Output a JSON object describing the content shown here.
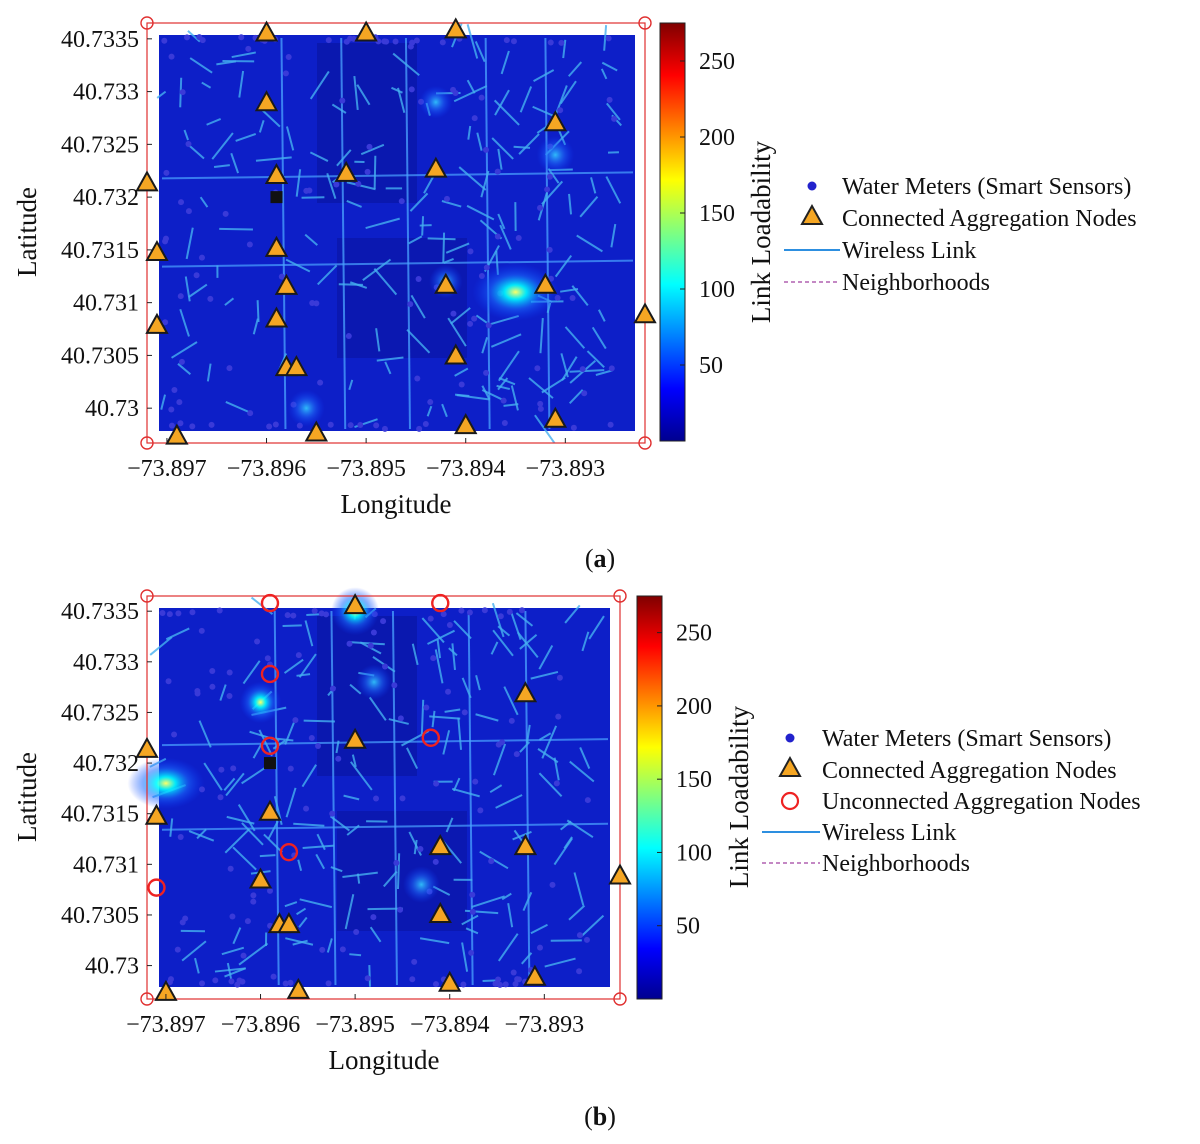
{
  "chart_data": [
    {
      "type": "heatmap",
      "caption": "(a)",
      "caption_letter": "a",
      "xlabel": "Longitude",
      "ylabel": "Latitude",
      "xticks": [
        "−73.897",
        "−73.896",
        "−73.895",
        "−73.894",
        "−73.893"
      ],
      "xtick_values": [
        -73.897,
        -73.896,
        -73.895,
        -73.894,
        -73.893
      ],
      "yticks": [
        "40.7335",
        "40.733",
        "40.7325",
        "40.732",
        "40.7315",
        "40.731",
        "40.7305",
        "40.73"
      ],
      "ytick_values": [
        40.7335,
        40.733,
        40.7325,
        40.732,
        40.7315,
        40.731,
        40.7305,
        40.73
      ],
      "xlim": [
        -73.8972,
        -73.8922
      ],
      "ylim": [
        40.72967,
        40.73365
      ],
      "colorbar": {
        "label": "Link Loadability",
        "ticks": [
          "50",
          "100",
          "150",
          "200",
          "250"
        ],
        "tick_values": [
          50,
          100,
          150,
          200,
          250
        ],
        "range": [
          0,
          275
        ]
      },
      "legend": [
        "Water Meters (Smart Sensors)",
        "Connected Aggregation Nodes",
        "Wireless Link",
        "Neighborhoods"
      ],
      "connected_nodes": [
        [
          -73.896,
          40.73355
        ],
        [
          -73.895,
          40.73355
        ],
        [
          -73.8941,
          40.73358
        ],
        [
          -73.896,
          40.73289
        ],
        [
          -73.8931,
          40.7327
        ],
        [
          -73.8972,
          40.73213
        ],
        [
          -73.8959,
          40.7322
        ],
        [
          -73.8952,
          40.73222
        ],
        [
          -73.8943,
          40.73226
        ],
        [
          -73.8971,
          40.73147
        ],
        [
          -73.8959,
          40.73151
        ],
        [
          -73.8958,
          40.73115
        ],
        [
          -73.8942,
          40.73116
        ],
        [
          -73.8932,
          40.73116
        ],
        [
          -73.8922,
          40.73088
        ],
        [
          -73.8971,
          40.73078
        ],
        [
          -73.8959,
          40.73084
        ],
        [
          -73.8958,
          40.73038
        ],
        [
          -73.8957,
          40.73038
        ],
        [
          -73.8941,
          40.73049
        ],
        [
          -73.8969,
          40.72973
        ],
        [
          -73.8955,
          40.72976
        ],
        [
          -73.894,
          40.72983
        ],
        [
          -73.8931,
          40.72989
        ]
      ],
      "hotspots": [
        {
          "x": -73.8935,
          "y": 40.7311,
          "value": 210
        },
        {
          "x": -73.8931,
          "y": 40.7324,
          "value": 85
        },
        {
          "x": -73.8956,
          "y": 40.73,
          "value": 80
        },
        {
          "x": -73.8943,
          "y": 40.7329,
          "value": 55
        },
        {
          "x": -73.8942,
          "y": 40.7312,
          "value": 60
        }
      ]
    },
    {
      "type": "heatmap",
      "caption": "(b)",
      "caption_letter": "b",
      "xlabel": "Longitude",
      "ylabel": "Latitude",
      "xticks": [
        "−73.897",
        "−73.896",
        "−73.895",
        "−73.894",
        "−73.893"
      ],
      "xtick_values": [
        -73.897,
        -73.896,
        -73.895,
        -73.894,
        -73.893
      ],
      "yticks": [
        "40.7335",
        "40.733",
        "40.7325",
        "40.732",
        "40.7315",
        "40.731",
        "40.7305",
        "40.73"
      ],
      "ytick_values": [
        40.7335,
        40.733,
        40.7325,
        40.732,
        40.7315,
        40.731,
        40.7305,
        40.73
      ],
      "xlim": [
        -73.8972,
        -73.8922
      ],
      "ylim": [
        40.72967,
        40.73365
      ],
      "colorbar": {
        "label": "Link Loadability",
        "ticks": [
          "50",
          "100",
          "150",
          "200",
          "250"
        ],
        "tick_values": [
          50,
          100,
          150,
          200,
          250
        ],
        "range": [
          0,
          275
        ]
      },
      "legend": [
        "Water Meters (Smart Sensors)",
        "Connected Aggregation Nodes",
        "Unconnected Aggregation Nodes",
        "Wireless Link",
        "Neighborhoods"
      ],
      "connected_nodes": [
        [
          -73.895,
          40.73355
        ],
        [
          -73.8932,
          40.73268
        ],
        [
          -73.8972,
          40.73213
        ],
        [
          -73.895,
          40.73222
        ],
        [
          -73.8971,
          40.73147
        ],
        [
          -73.8959,
          40.73151
        ],
        [
          -73.8941,
          40.73117
        ],
        [
          -73.8932,
          40.73117
        ],
        [
          -73.8922,
          40.73088
        ],
        [
          -73.896,
          40.73084
        ],
        [
          -73.8958,
          40.7304
        ],
        [
          -73.8957,
          40.7304
        ],
        [
          -73.8941,
          40.7305
        ],
        [
          -73.897,
          40.72973
        ],
        [
          -73.8956,
          40.72975
        ],
        [
          -73.894,
          40.72982
        ],
        [
          -73.8931,
          40.72988
        ]
      ],
      "unconnected_nodes": [
        [
          -73.8959,
          40.73358
        ],
        [
          -73.8941,
          40.73358
        ],
        [
          -73.8959,
          40.73288
        ],
        [
          -73.8959,
          40.73217
        ],
        [
          -73.8942,
          40.73225
        ],
        [
          -73.8957,
          40.73112
        ],
        [
          -73.8971,
          40.73077
        ]
      ],
      "hotspots": [
        {
          "x": -73.897,
          "y": 40.7318,
          "value": 170
        },
        {
          "x": -73.895,
          "y": 40.7335,
          "value": 150
        },
        {
          "x": -73.896,
          "y": 40.7326,
          "value": 110
        },
        {
          "x": -73.8948,
          "y": 40.7328,
          "value": 70
        },
        {
          "x": -73.8943,
          "y": 40.7308,
          "value": 80
        }
      ]
    }
  ]
}
